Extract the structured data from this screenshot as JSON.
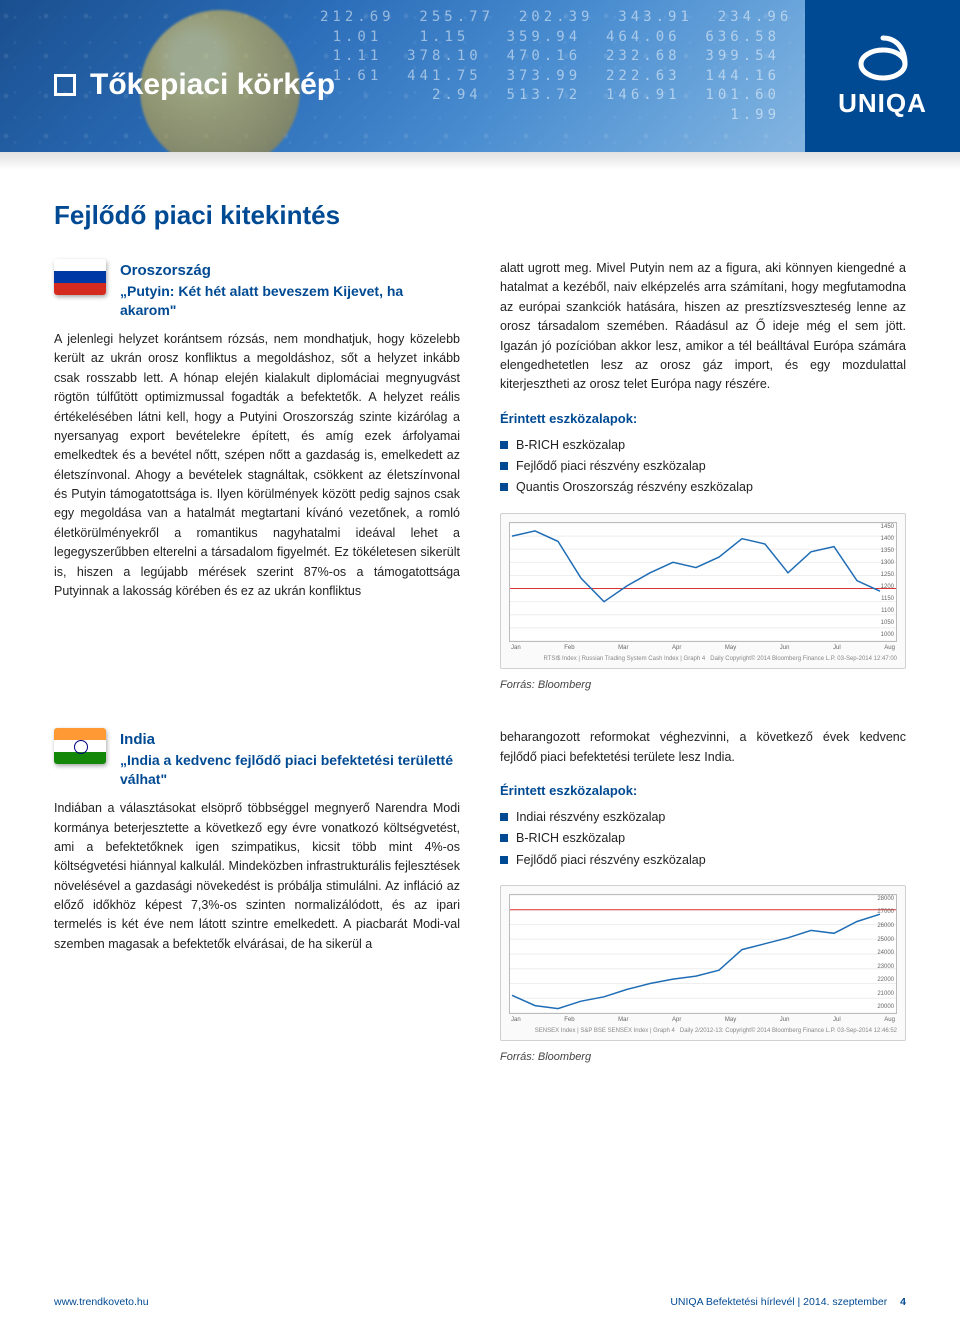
{
  "banner": {
    "section_title": "Tőkepiaci körkép",
    "brand": "UNIQA",
    "brand_color": "#004a93",
    "decor_numbers": "212.69  255.77  202.39  343.91  234.96\n1.01   1.15   359.94  464.06  636.58\n1.11  378.10  470.16  232.68  399.54\n1.61  441.75  373.99  222.63  144.16\n2.94  513.72  146.91  101.60\n1.99"
  },
  "subtitle": "Fejlődő piaci kitekintés",
  "russia": {
    "country": "Oroszország",
    "quote": "„Putyin: Két hét alatt beveszem Kijevet, ha akarom\"",
    "body_left": "A jelenlegi helyzet korántsem rózsás, nem mondhatjuk, hogy közelebb került az ukrán orosz konfliktus a megoldáshoz, sőt a helyzet inkább csak rosszabb lett. A hónap elején kialakult diplomáciai megnyugvást rögtön túlfűtött optimizmussal fogadták a befektetők. A helyzet reális értékelésében látni kell, hogy a Putyini Oroszország szinte kizárólag a nyersanyag export bevételekre épített, és amíg ezek árfolyamai emelkedtek és a bevétel nőtt, szépen nőtt a gazdaság is, emelkedett az életszínvonal. Ahogy a bevételek stagnáltak, csökkent az életszínvonal és Putyin támogatottsága is. Ilyen körülmények között pedig sajnos csak egy megoldása van a hatalmát megtartani kívánó vezetőnek, a romló életkörülményekről a romantikus nagyhatalmi ideával lehet a legegyszerűbben elterelni a társadalom figyelmét. Ez tökéletesen sikerült is, hiszen a legújabb mérések szerint 87%-os a támogatottsága Putyinnak a lakosság körében és ez az ukrán konfliktus",
    "body_right": "alatt ugrott meg. Mivel Putyin nem az a figura, aki könnyen kiengedné a hatalmat a kezéből, naiv elképzelés arra számítani, hogy megfutamodna az európai szankciók hatására, hiszen az presztízsveszteség lenne az orosz társadalom szemében. Ráadásul az Ő ideje még el sem jött. Igazán jó pozícióban akkor lesz, amikor a tél beálltával Európa számára elengedhetetlen lesz az orosz gáz import, és egy mozdulattal kiterjesztheti az orosz telet Európa nagy részére.",
    "assets_label": "Érintett eszközalapok:",
    "assets": [
      "B-RICH eszközalap",
      "Fejlődő piaci részvény eszközalap",
      "Quantis Oroszország részvény eszközalap"
    ],
    "chart": {
      "type": "line",
      "ylim": [
        1000,
        1450
      ],
      "ytick_step": 50,
      "x_labels": [
        "Jan",
        "Feb",
        "Mar",
        "Apr",
        "May",
        "Jun",
        "Jul",
        "Aug"
      ],
      "values": [
        1400,
        1420,
        1380,
        1240,
        1150,
        1210,
        1260,
        1300,
        1280,
        1320,
        1390,
        1370,
        1260,
        1340,
        1360,
        1230,
        1190
      ],
      "line_color": "#1f6db5",
      "grid_color": "#eeeeee",
      "background_color": "#ffffff",
      "hline": 1200,
      "caption_left": "RTSI$ Index | Russian Trading System Cash Index | Graph 4",
      "caption_right": "Daily  Copyright© 2014 Bloomberg Finance L.P.  03-Sep-2014 12:47:00"
    },
    "source": "Forrás: Bloomberg"
  },
  "india": {
    "country": "India",
    "quote": "„India a kedvenc fejlődő piaci befektetési területté válhat\"",
    "body_left": "Indiában a választásokat elsöprő többséggel megnyerő Narendra Modi kormánya beterjesztette a következő egy évre vonatkozó költségvetést, ami a befektetőknek igen szimpatikus, kicsit több mint 4%-os költségvetési hiánnyal kalkulál. Mindeközben infrastrukturális fejlesztések növelésével a gazdasági növekedést is próbálja stimulálni. Az infláció az előző időkhöz képest 7,3%-os szinten normalizálódott, és az ipari termelés is két éve nem látott szintre emelkedett. A piacbarát Modi-val szemben magasak a befektetők elvárásai, de ha sikerül a",
    "body_right": "beharangozott reformokat véghezvinni, a következő évek kedvenc fejlődő piaci befektetési területe lesz India.",
    "assets_label": "Érintett eszközalapok:",
    "assets": [
      "Indiai részvény eszközalap",
      "B-RICH eszközalap",
      "Fejlődő piaci részvény eszközalap"
    ],
    "chart": {
      "type": "line",
      "ylim": [
        20000,
        28000
      ],
      "ytick_step": 1000,
      "x_labels": [
        "Jan",
        "Feb",
        "Mar",
        "Apr",
        "May",
        "Jun",
        "Jul",
        "Aug"
      ],
      "values": [
        21200,
        20500,
        20300,
        20800,
        21100,
        21600,
        22000,
        22300,
        22500,
        22900,
        24300,
        24700,
        25100,
        25600,
        25400,
        26200,
        26700
      ],
      "line_color": "#1f6db5",
      "grid_color": "#eeeeee",
      "background_color": "#ffffff",
      "hline": 27000,
      "caption_left": "SENSEX Index | S&P BSE SENSEX Index | Graph 4",
      "caption_right": "Daily  2/2012-13:  Copyright© 2014 Bloomberg Finance L.P.  03-Sep-2014 12:46:52"
    },
    "source": "Forrás: Bloomberg"
  },
  "footer": {
    "url": "www.trendkoveto.hu",
    "pub": "UNIQA Befektetési hírlevél | 2014. szeptember",
    "page": "4"
  }
}
